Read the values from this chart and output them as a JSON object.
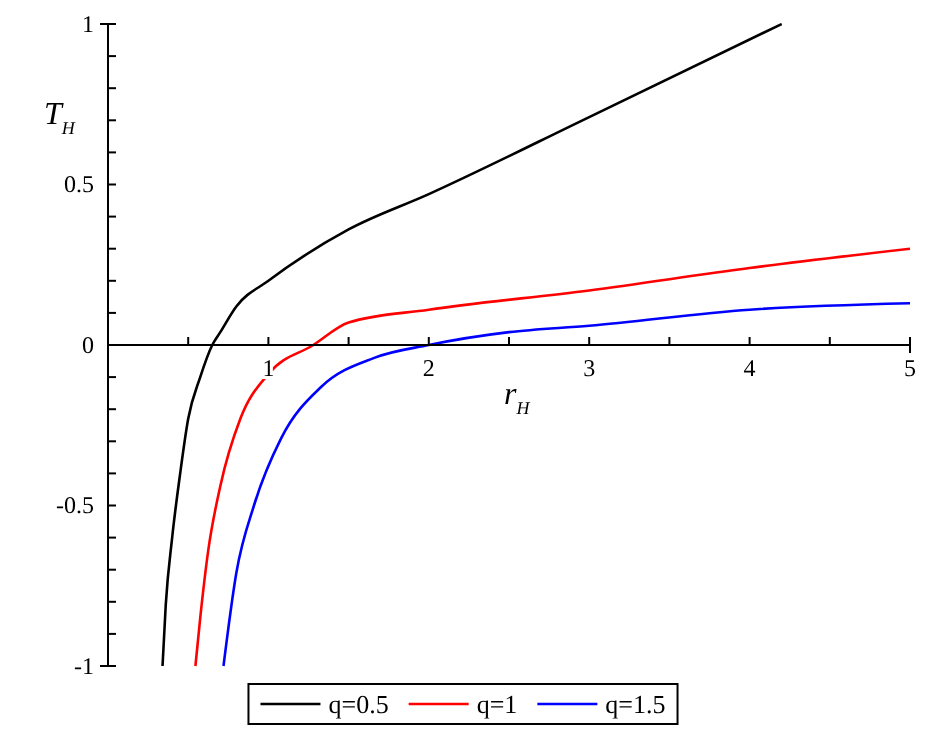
{
  "chart_data": {
    "type": "line",
    "xlabel": "r$_{H}$",
    "ylabel": "T$_{H}$",
    "xlim": [
      0,
      5
    ],
    "ylim": [
      -1,
      1
    ],
    "xticks": [
      {
        "value": 0.5,
        "label": null
      },
      1,
      {
        "value": 1.5,
        "label": null
      },
      2,
      {
        "value": 2.5,
        "label": null
      },
      3,
      {
        "value": 3.5,
        "label": null
      },
      4,
      {
        "value": 4.5,
        "label": null
      },
      5
    ],
    "yticks": [
      -1,
      {
        "value": -0.9,
        "label": null
      },
      {
        "value": -0.8,
        "label": null
      },
      {
        "value": -0.7,
        "label": null
      },
      {
        "value": -0.6,
        "label": null
      },
      -0.5,
      {
        "value": -0.4,
        "label": null
      },
      {
        "value": -0.3,
        "label": null
      },
      {
        "value": -0.2,
        "label": null
      },
      {
        "value": -0.1,
        "label": null
      },
      0,
      {
        "value": 0.1,
        "label": null
      },
      {
        "value": 0.2,
        "label": null
      },
      {
        "value": 0.3,
        "label": null
      },
      {
        "value": 0.4,
        "label": null
      },
      0.5,
      {
        "value": 0.6,
        "label": null
      },
      {
        "value": 0.7,
        "label": null
      },
      {
        "value": 0.8,
        "label": null
      },
      {
        "value": 0.9,
        "label": null
      },
      1
    ],
    "grid": false,
    "legend": "bottom",
    "marker": "none",
    "line_style": "solid",
    "series": [
      {
        "name": "q=0.5",
        "color": "#000000",
        "x": [
          0.34,
          0.36,
          0.4,
          0.45,
          0.5,
          0.575,
          0.65,
          0.7,
          0.8,
          1.0,
          1.5,
          2,
          3,
          4.2
        ],
        "values": [
          -1,
          -0.81,
          -0.6,
          -0.4,
          -0.23,
          -0.1,
          0,
          0.04,
          0.12,
          0.2,
          0.36,
          0.47,
          0.71,
          1
        ]
      },
      {
        "name": "q=1",
        "color": "#ff0000",
        "x": [
          0.545,
          0.575,
          0.625,
          0.7,
          0.825,
          1.0,
          1.28,
          1.5,
          2,
          3,
          4,
          5
        ],
        "values": [
          -1,
          -0.85,
          -0.64,
          -0.44,
          -0.23,
          -0.09,
          0,
          0.07,
          0.11,
          0.17,
          0.24,
          0.3
        ]
      },
      {
        "name": "q=1.5",
        "color": "#0000ff",
        "x": [
          0.72,
          0.8,
          0.91,
          1.08,
          1.33,
          1.66,
          2,
          2.5,
          3,
          4,
          5
        ],
        "values": [
          -1,
          -0.71,
          -0.5,
          -0.29,
          -0.13,
          -0.04,
          0,
          0.04,
          0.06,
          0.11,
          0.13
        ]
      }
    ]
  }
}
